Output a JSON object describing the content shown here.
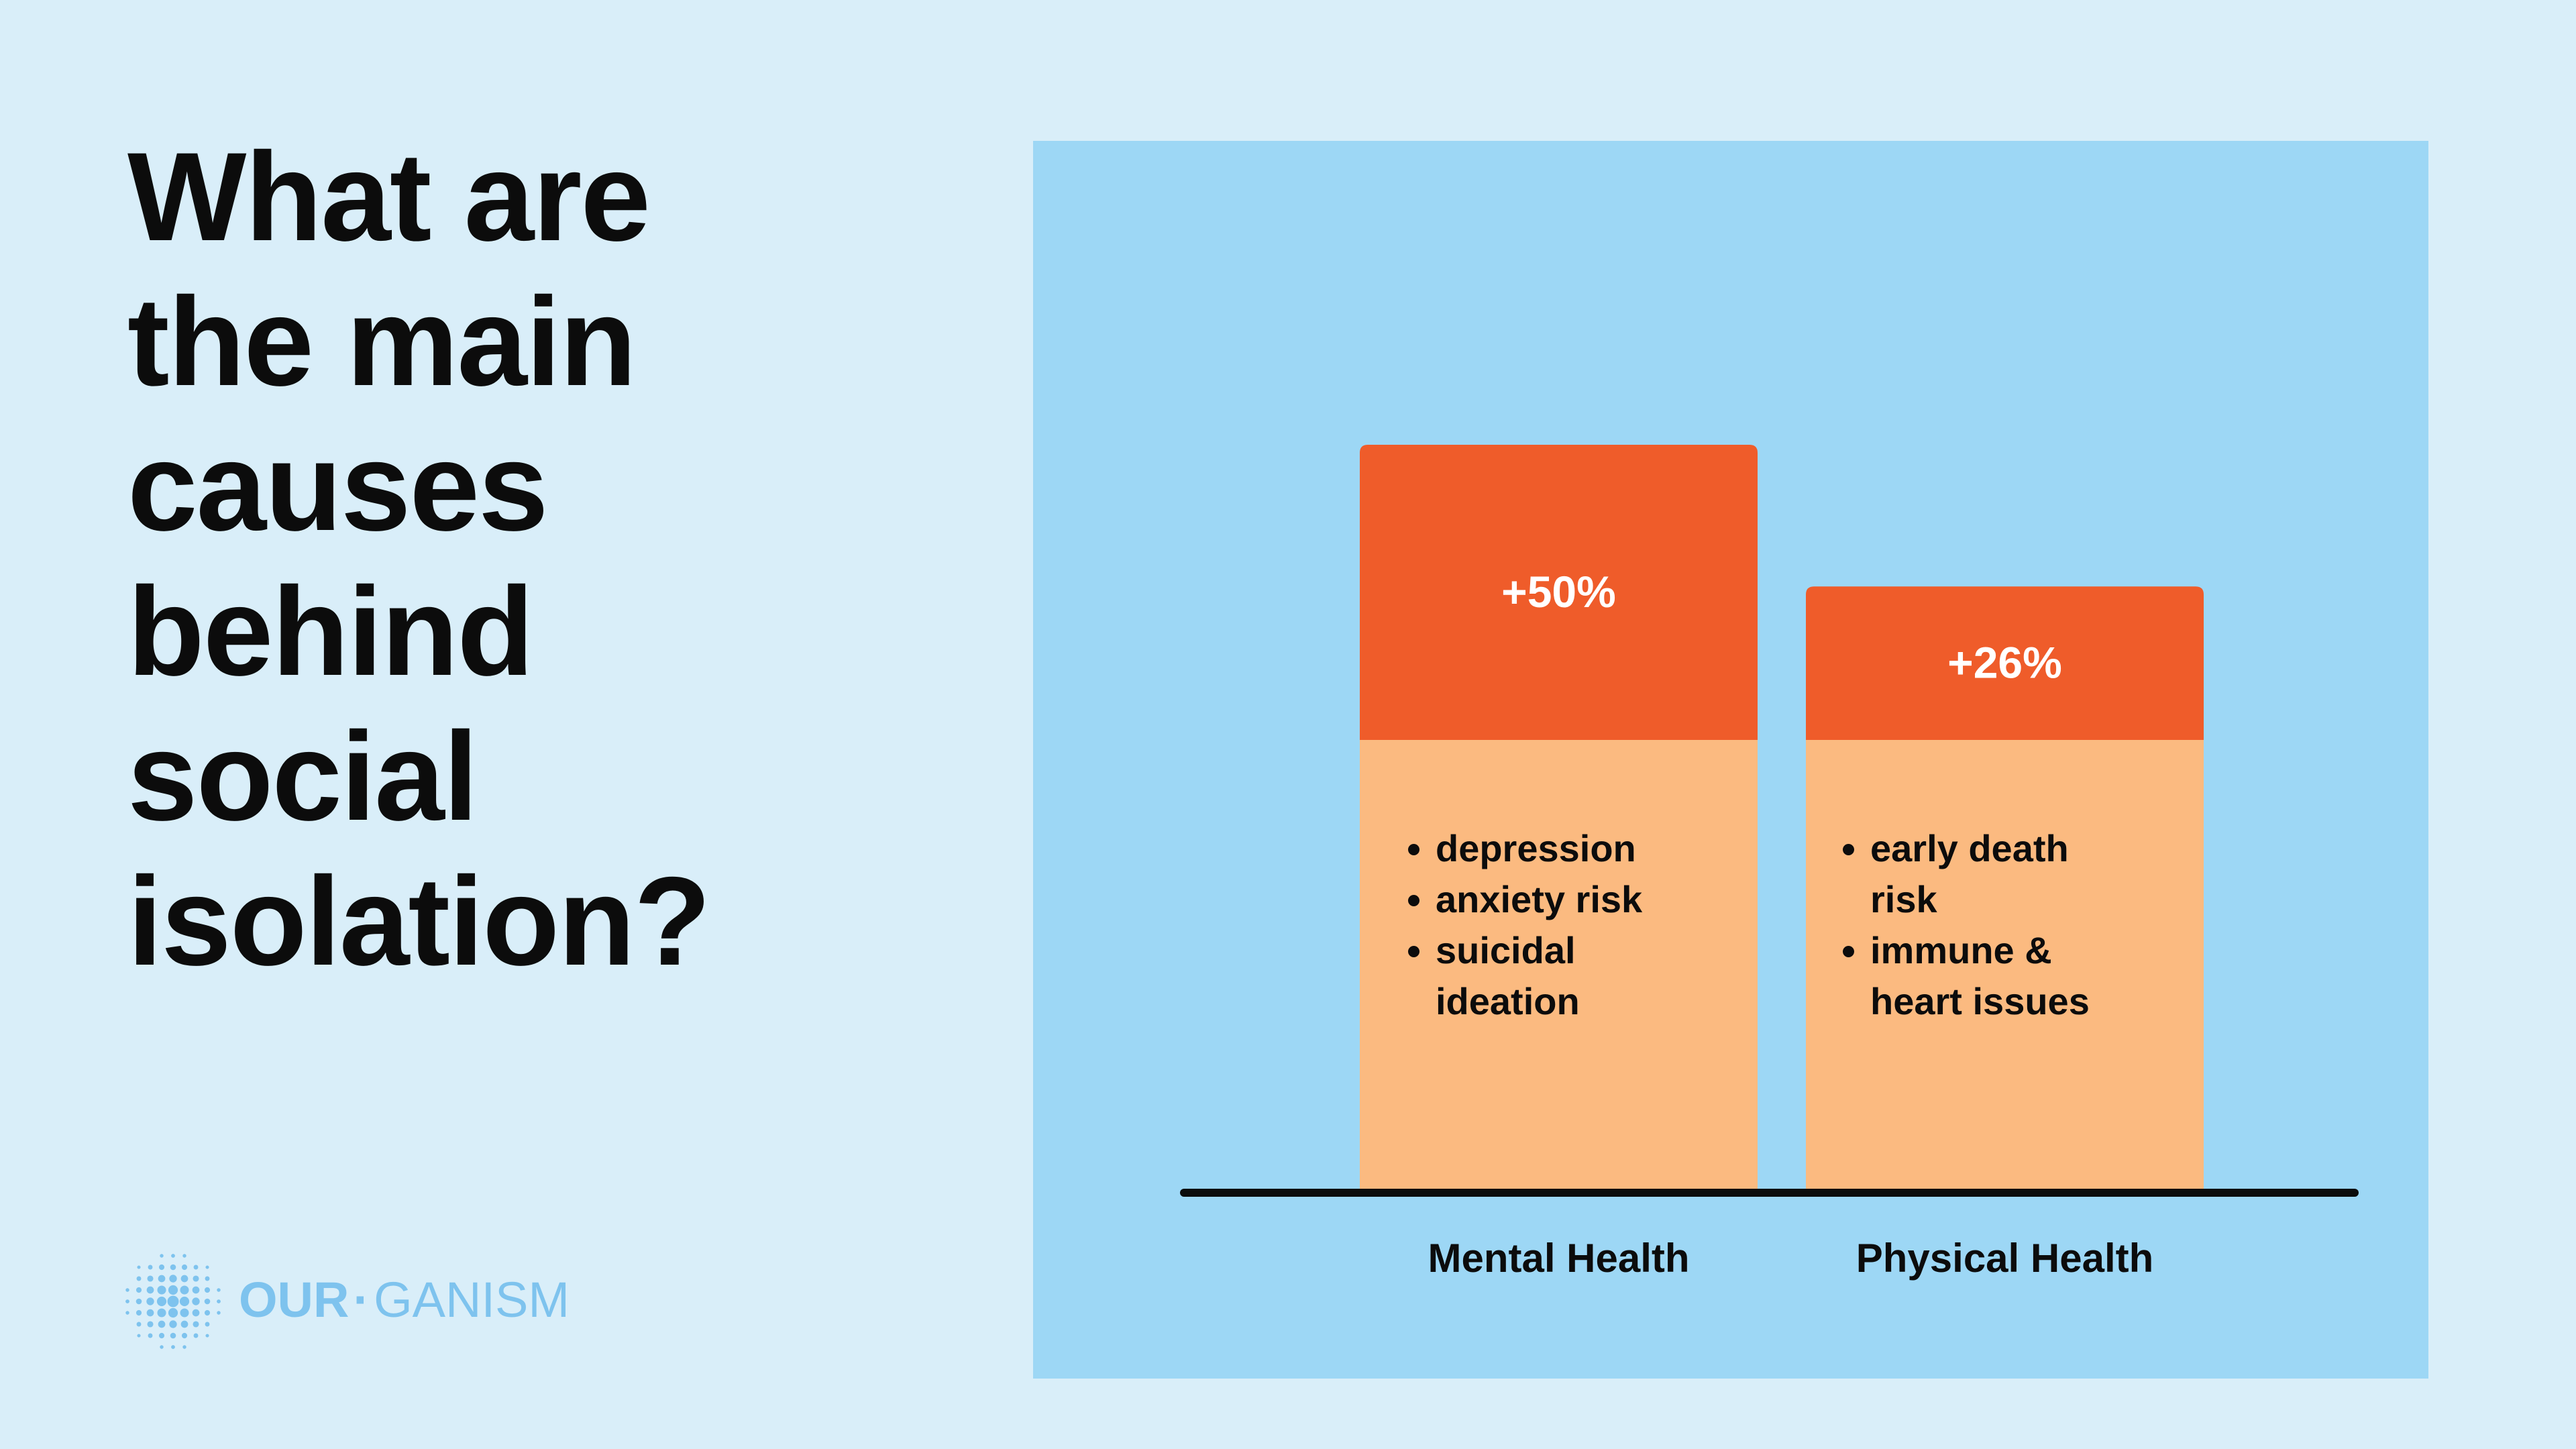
{
  "headline": {
    "lines": [
      "What are",
      "the main",
      "causes",
      "behind",
      "social",
      "isolation?"
    ]
  },
  "logo": {
    "part1": "OUR",
    "separator": "·",
    "part2": "GANISM",
    "icon": "dot-burst-icon"
  },
  "colors": {
    "background": "#d9eef9",
    "panel": "#9dd7f5",
    "bar_top": "#ef5c2a",
    "bar_bottom": "#fbba80",
    "axis": "#0c0c0c",
    "logo": "#7ec3ee"
  },
  "chart_data": {
    "type": "bar",
    "categories": [
      "Mental Health",
      "Physical Health"
    ],
    "values": [
      50,
      26
    ],
    "value_labels": [
      "+50%",
      "+26%"
    ],
    "bullets": [
      [
        "depression",
        "anxiety risk",
        "suicidal ideation"
      ],
      [
        "early death risk",
        "immune & heart issues"
      ]
    ],
    "title": "",
    "xlabel": "",
    "ylabel": "",
    "grid": false,
    "legend": "none"
  }
}
